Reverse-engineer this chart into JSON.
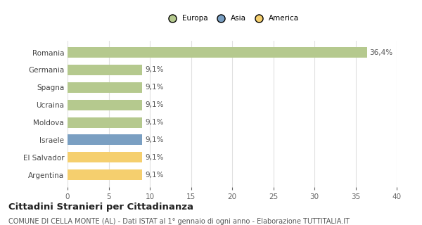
{
  "categories": [
    "Romania",
    "Germania",
    "Spagna",
    "Ucraina",
    "Moldova",
    "Israele",
    "El Salvador",
    "Argentina"
  ],
  "values": [
    36.4,
    9.1,
    9.1,
    9.1,
    9.1,
    9.1,
    9.1,
    9.1
  ],
  "labels": [
    "36,4%",
    "9,1%",
    "9,1%",
    "9,1%",
    "9,1%",
    "9,1%",
    "9,1%",
    "9,1%"
  ],
  "colors": [
    "#b5c98e",
    "#b5c98e",
    "#b5c98e",
    "#b5c98e",
    "#b5c98e",
    "#7a9fc2",
    "#f5cf6e",
    "#f5cf6e"
  ],
  "legend_items": [
    {
      "label": "Europa",
      "color": "#b5c98e"
    },
    {
      "label": "Asia",
      "color": "#7a9fc2"
    },
    {
      "label": "America",
      "color": "#f5cf6e"
    }
  ],
  "xlim": [
    0,
    40
  ],
  "xticks": [
    0,
    5,
    10,
    15,
    20,
    25,
    30,
    35,
    40
  ],
  "title_main": "Cittadini Stranieri per Cittadinanza",
  "title_sub": "COMUNE DI CELLA MONTE (AL) - Dati ISTAT al 1° gennaio di ogni anno - Elaborazione TUTTITALIA.IT",
  "background_color": "#ffffff",
  "grid_color": "#e0e0e0",
  "bar_height": 0.6,
  "label_fontsize": 7.5,
  "tick_fontsize": 7.5,
  "title_fontsize": 9.5,
  "subtitle_fontsize": 7.0
}
